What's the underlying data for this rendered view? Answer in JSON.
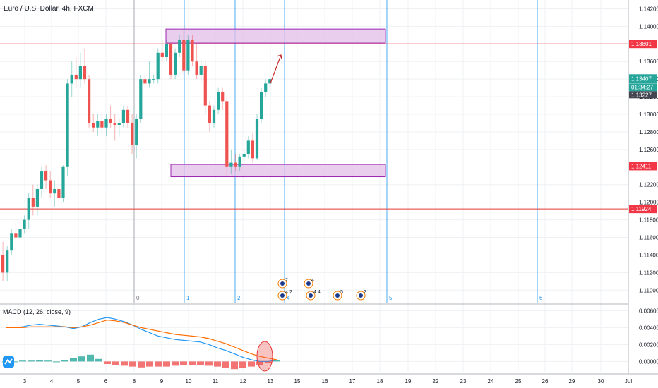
{
  "header": {
    "symbol_title": "Euro / U.S. Dollar, 4h, FXCM"
  },
  "macd_panel": {
    "title": "MACD (12, 26, close, 9)"
  },
  "colors": {
    "up": "#26a69a",
    "down": "#ef5350",
    "zone": "#e1bee7",
    "zone_border": "#9c27b0",
    "hline": "#e53935",
    "vline_cycle": "#2196f3",
    "macd": "#2196f3",
    "signal": "#ff6d00",
    "grid": "#eef0f3"
  },
  "chart_data": [
    {
      "type": "candlestick",
      "title": "Euro / U.S. Dollar, 4h, FXCM",
      "ylim": [
        1.1085,
        1.143
      ],
      "x_ticks": [
        "3",
        "4",
        "5",
        "6",
        "8",
        "9",
        "10",
        "11",
        "12",
        "13",
        "15",
        "16",
        "17",
        "18",
        "19",
        "22",
        "23",
        "24",
        "25",
        "26",
        "29",
        "30",
        "Jul",
        "2",
        "3"
      ],
      "y_ticks": [
        "1.14200",
        "1.14000",
        "1.13600",
        "1.13400",
        "1.13200",
        "1.13000",
        "1.12800",
        "1.12600",
        "1.12200",
        "1.12000",
        "1.11800",
        "1.11600",
        "1.11400",
        "1.11200",
        "1.11000"
      ],
      "price_levels": [
        1.13801,
        1.12411,
        1.11924
      ],
      "price_labels": [
        "1.13801",
        "1.12411",
        "1.11924"
      ],
      "current_price": "1.13407",
      "countdown": "01:34:27",
      "prev_price": "1.13227",
      "cycle_labels": [
        "0",
        "1",
        "2",
        "3",
        "4",
        "5",
        "6"
      ],
      "zones": [
        {
          "from_day": "10",
          "to_day": "22",
          "low": 1.1381,
          "high": 1.1397
        },
        {
          "from_day": "10",
          "to_day": "22",
          "low": 1.1229,
          "high": 1.1243
        }
      ],
      "candles": [
        [
          1.114,
          1.1155,
          1.111,
          1.112
        ],
        [
          1.112,
          1.115,
          1.111,
          1.1145
        ],
        [
          1.1145,
          1.117,
          1.114,
          1.1165
        ],
        [
          1.1165,
          1.1178,
          1.1158,
          1.116
        ],
        [
          1.116,
          1.1175,
          1.115,
          1.117
        ],
        [
          1.117,
          1.1185,
          1.1165,
          1.118
        ],
        [
          1.118,
          1.121,
          1.117,
          1.1205
        ],
        [
          1.1205,
          1.122,
          1.1185,
          1.1195
        ],
        [
          1.1195,
          1.122,
          1.1185,
          1.1215
        ],
        [
          1.1215,
          1.124,
          1.1205,
          1.1235
        ],
        [
          1.1235,
          1.1242,
          1.1215,
          1.1225
        ],
        [
          1.1225,
          1.1235,
          1.1205,
          1.121
        ],
        [
          1.121,
          1.1225,
          1.1195,
          1.1215
        ],
        [
          1.1215,
          1.123,
          1.12,
          1.1205
        ],
        [
          1.1205,
          1.1242,
          1.12,
          1.124
        ],
        [
          1.124,
          1.134,
          1.123,
          1.1335
        ],
        [
          1.1335,
          1.136,
          1.132,
          1.1345
        ],
        [
          1.1345,
          1.1365,
          1.133,
          1.134
        ],
        [
          1.134,
          1.137,
          1.133,
          1.1355
        ],
        [
          1.1355,
          1.1375,
          1.1335,
          1.134
        ],
        [
          1.134,
          1.1345,
          1.1285,
          1.129
        ],
        [
          1.129,
          1.13,
          1.128,
          1.1285
        ],
        [
          1.1285,
          1.13,
          1.1275,
          1.1292
        ],
        [
          1.1292,
          1.1305,
          1.128,
          1.1285
        ],
        [
          1.1285,
          1.13,
          1.1275,
          1.1295
        ],
        [
          1.1295,
          1.131,
          1.1285,
          1.129
        ],
        [
          1.129,
          1.13,
          1.127,
          1.1288
        ],
        [
          1.1288,
          1.1295,
          1.1275,
          1.129
        ],
        [
          1.129,
          1.131,
          1.1285,
          1.1305
        ],
        [
          1.1305,
          1.131,
          1.1285,
          1.129
        ],
        [
          1.129,
          1.13,
          1.1255,
          1.1265
        ],
        [
          1.1265,
          1.13,
          1.125,
          1.1295
        ],
        [
          1.1295,
          1.1345,
          1.129,
          1.134
        ],
        [
          1.134,
          1.1345,
          1.133,
          1.1335
        ],
        [
          1.1335,
          1.136,
          1.133,
          1.134
        ],
        [
          1.134,
          1.1345,
          1.1335,
          1.134
        ],
        [
          1.134,
          1.1375,
          1.1335,
          1.137
        ],
        [
          1.137,
          1.1385,
          1.136,
          1.1365
        ],
        [
          1.1365,
          1.1385,
          1.136,
          1.138
        ],
        [
          1.138,
          1.1382,
          1.134,
          1.1345
        ],
        [
          1.1345,
          1.1375,
          1.134,
          1.137
        ],
        [
          1.137,
          1.139,
          1.1365,
          1.1385
        ],
        [
          1.1385,
          1.1395,
          1.1345,
          1.135
        ],
        [
          1.135,
          1.139,
          1.1345,
          1.1385
        ],
        [
          1.1385,
          1.139,
          1.1355,
          1.136
        ],
        [
          1.136,
          1.138,
          1.134,
          1.1345
        ],
        [
          1.1345,
          1.1362,
          1.1335,
          1.1355
        ],
        [
          1.1355,
          1.136,
          1.13,
          1.131
        ],
        [
          1.131,
          1.1315,
          1.128,
          1.129
        ],
        [
          1.129,
          1.131,
          1.1285,
          1.1305
        ],
        [
          1.1305,
          1.133,
          1.13,
          1.1325
        ],
        [
          1.1325,
          1.133,
          1.1305,
          1.1315
        ],
        [
          1.1315,
          1.132,
          1.123,
          1.124
        ],
        [
          1.124,
          1.126,
          1.1232,
          1.1245
        ],
        [
          1.1245,
          1.1255,
          1.1235,
          1.124
        ],
        [
          1.124,
          1.1255,
          1.1235,
          1.1252
        ],
        [
          1.1252,
          1.126,
          1.1245,
          1.1255
        ],
        [
          1.1255,
          1.1275,
          1.125,
          1.127
        ],
        [
          1.127,
          1.1278,
          1.1245,
          1.125
        ],
        [
          1.125,
          1.13,
          1.1248,
          1.1295
        ],
        [
          1.1295,
          1.133,
          1.129,
          1.1325
        ],
        [
          1.1325,
          1.134,
          1.132,
          1.1335
        ],
        [
          1.1335,
          1.1342,
          1.133,
          1.134
        ]
      ]
    },
    {
      "type": "macd",
      "title": "MACD (12, 26, close, 9)",
      "ylim": [
        -0.0013,
        0.0067
      ],
      "y_ticks": [
        "0.00600",
        "0.00400",
        "0.00200",
        "0.00000"
      ],
      "macd": [
        0.004,
        0.004,
        0.0041,
        0.0043,
        0.0044,
        0.0043,
        0.0042,
        0.0041,
        0.0039,
        0.0041,
        0.0046,
        0.005,
        0.0052,
        0.005,
        0.0047,
        0.0043,
        0.0038,
        0.0034,
        0.003,
        0.0028,
        0.0026,
        0.0025,
        0.0024,
        0.0023,
        0.002,
        0.0016,
        0.0013,
        0.0009,
        0.0005,
        0.0002,
        0.0,
        0.0,
        0.0002
      ],
      "signal": [
        0.004,
        0.004,
        0.004,
        0.0041,
        0.0041,
        0.0041,
        0.0041,
        0.0041,
        0.004,
        0.0041,
        0.0043,
        0.0046,
        0.0049,
        0.0048,
        0.0046,
        0.0043,
        0.004,
        0.0038,
        0.0036,
        0.0034,
        0.0032,
        0.0031,
        0.003,
        0.0029,
        0.0027,
        0.0024,
        0.0021,
        0.0017,
        0.0013,
        0.0009,
        0.0006,
        0.0004,
        0.0002
      ],
      "histogram": [
        0.0,
        0.0,
        0.0001,
        0.0001,
        0.0002,
        0.0001,
        0.0,
        0.0002,
        0.0004,
        0.0006,
        0.0008,
        0.0003,
        -0.0003,
        -0.0004,
        -0.0005,
        -0.0006,
        -0.0007,
        -0.0006,
        -0.0006,
        -0.0006,
        -0.0005,
        -0.0004,
        -0.0004,
        -0.0004,
        -0.0005,
        -0.0006,
        -0.0008,
        -0.0009,
        -0.0008,
        -0.0006,
        -0.0004,
        -0.0002,
        0.0002
      ]
    }
  ]
}
